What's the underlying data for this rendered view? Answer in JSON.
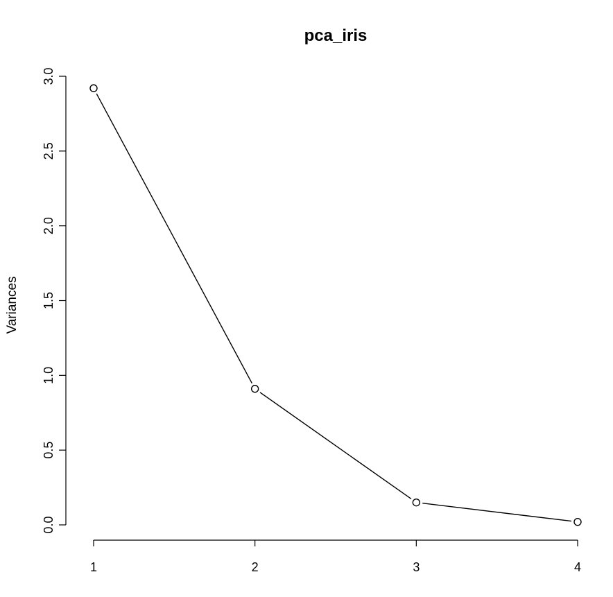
{
  "chart_data": {
    "type": "line",
    "title": "pca_iris",
    "xlabel": "",
    "ylabel": "Variances",
    "x": [
      1,
      2,
      3,
      4
    ],
    "values": [
      2.92,
      0.91,
      0.15,
      0.02
    ],
    "xlim": [
      1,
      4
    ],
    "ylim": [
      0,
      3
    ],
    "x_ticks": [
      1,
      2,
      3,
      4
    ],
    "y_ticks": [
      0.0,
      0.5,
      1.0,
      1.5,
      2.0,
      2.5,
      3.0
    ],
    "x_tick_labels": [
      "1",
      "2",
      "3",
      "4"
    ],
    "y_tick_labels": [
      "0.0",
      "0.5",
      "1.0",
      "1.5",
      "2.0",
      "2.5",
      "3.0"
    ],
    "markers": "open-circle",
    "grid": false,
    "legend": "none"
  }
}
